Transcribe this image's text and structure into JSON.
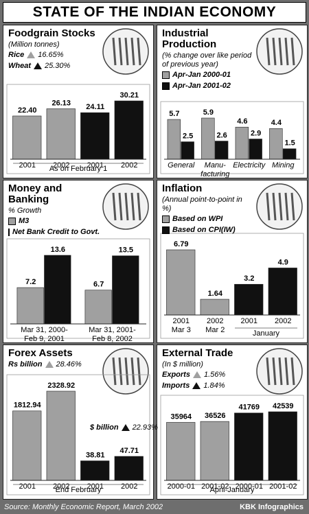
{
  "title": "STATE OF THE INDIAN ECONOMY",
  "source": "Source: Monthly Economic Report, March 2002",
  "credit": "KBK Infographics",
  "chart_data": [
    {
      "type": "bar",
      "title": "Foodgrain Stocks",
      "subtitle": "(Million tonnes)",
      "categories": [
        "2001",
        "2002",
        "2001",
        "2002"
      ],
      "xlabel": "As on February 1",
      "series": [
        {
          "name": "Rice",
          "color": "#a0a0a0",
          "change": {
            "value": 16.65,
            "label": "16.65%"
          },
          "values": [
            22.4,
            26.13,
            null,
            null
          ],
          "value_labels": [
            "22.40",
            "26.13",
            null,
            null
          ]
        },
        {
          "name": "Wheat",
          "color": "#111111",
          "change": {
            "value": 25.3,
            "label": "25.30%"
          },
          "values": [
            null,
            null,
            24.11,
            30.21
          ],
          "value_labels": [
            null,
            null,
            "24.11",
            "30.21"
          ]
        }
      ]
    },
    {
      "type": "bar",
      "title": "Industrial Production",
      "subtitle": "(% change over like period of previous year)",
      "categories": [
        "General",
        "Manu-",
        "Electricity",
        "Mining"
      ],
      "sublabels": [
        null,
        "facturing",
        null,
        null
      ],
      "series": [
        {
          "name": "Apr-Jan 2000-01",
          "color": "#a0a0a0",
          "values": [
            5.7,
            5.9,
            4.6,
            4.4
          ]
        },
        {
          "name": "Apr-Jan 2001-02",
          "color": "#111111",
          "values": [
            2.5,
            2.6,
            2.9,
            1.5
          ]
        }
      ]
    },
    {
      "type": "bar",
      "title": "Money and Banking",
      "subtitle": "% Growth",
      "categories": [
        "Mar 31, 2000-",
        "Mar 31, 2001-"
      ],
      "sublabels": [
        "Feb 9, 2001",
        "Feb 8, 2002"
      ],
      "series": [
        {
          "name": "M3",
          "color": "#a0a0a0",
          "values": [
            7.2,
            6.7
          ]
        },
        {
          "name": "Net Bank Credit to Govt.",
          "color": "#111111",
          "values": [
            13.6,
            13.5
          ]
        }
      ]
    },
    {
      "type": "bar",
      "title": "Inflation",
      "subtitle": "(Annual point-to-point in %)",
      "categories": [
        "2001",
        "2002",
        "2001",
        "2002"
      ],
      "sublabels": [
        "Mar 3",
        "Mar 2",
        null,
        null
      ],
      "xlabel": "January",
      "series": [
        {
          "name": "Based on WPI",
          "color": "#a0a0a0",
          "values": [
            6.79,
            1.64,
            null,
            null
          ]
        },
        {
          "name": "Based on CPI(IW)",
          "color": "#111111",
          "values": [
            null,
            null,
            3.2,
            4.9
          ]
        }
      ]
    },
    {
      "type": "bar",
      "title": "Forex Assets",
      "categories": [
        "2001",
        "2002",
        "2001",
        "2002"
      ],
      "xlabel": "End February",
      "series": [
        {
          "name": "Rs billion",
          "color": "#a0a0a0",
          "change": {
            "value": 28.46,
            "label": "28.46%"
          },
          "values": [
            1812.94,
            2328.92,
            null,
            null
          ]
        },
        {
          "name": "$ billion",
          "color": "#111111",
          "change": {
            "value": 22.93,
            "label": "22.93%"
          },
          "values": [
            null,
            null,
            38.81,
            47.71
          ]
        }
      ]
    },
    {
      "type": "bar",
      "title": "External Trade",
      "subtitle": "(In $ million)",
      "categories": [
        "2000-01",
        "2001-02",
        "2000-01",
        "2001-02"
      ],
      "xlabel": "April-January",
      "series": [
        {
          "name": "Exports",
          "color": "#a0a0a0",
          "change": {
            "value": 1.56,
            "label": "1.56%"
          },
          "values": [
            35964,
            36526,
            null,
            null
          ]
        },
        {
          "name": "Imports",
          "color": "#111111",
          "change": {
            "value": 1.84,
            "label": "1.84%"
          },
          "values": [
            null,
            null,
            41769,
            42539
          ]
        }
      ]
    }
  ]
}
